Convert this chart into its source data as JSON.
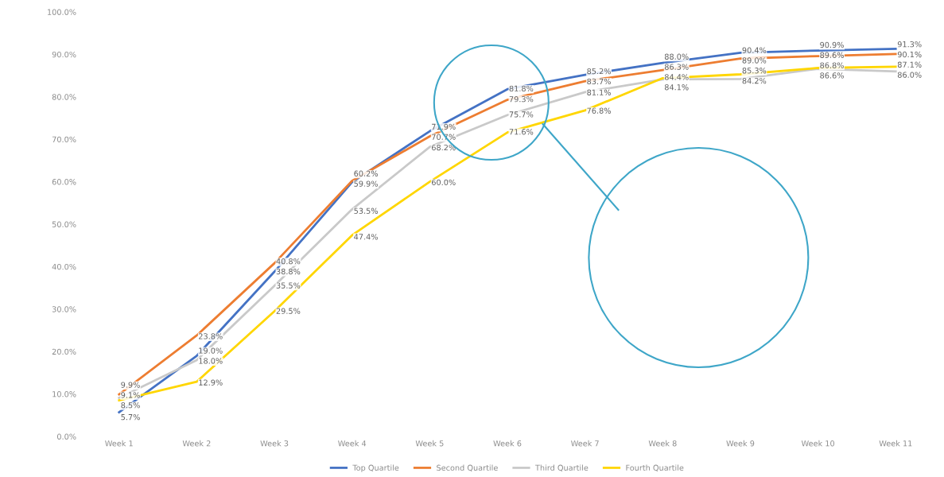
{
  "chart_data": {
    "type": "line",
    "categories": [
      "Week 1",
      "Week 2",
      "Week 3",
      "Week 4",
      "Week 5",
      "Week 6",
      "Week 7",
      "Week 8",
      "Week 9",
      "Week 10",
      "Week 11"
    ],
    "series": [
      {
        "name": "Top Quartile",
        "color": "#4472c4",
        "values": [
          5.7,
          19.0,
          38.8,
          59.9,
          71.9,
          81.8,
          85.2,
          88.0,
          90.4,
          90.9,
          91.3
        ],
        "value_labels": [
          "5.7%",
          "19.0%",
          "38.8%",
          "59.9%",
          "71.9%",
          "81.8%",
          "85.2%",
          "88.0%",
          "90.4%",
          "90.9%",
          "91.3%"
        ]
      },
      {
        "name": "Second Quartile",
        "color": "#ed7d31",
        "values": [
          9.9,
          23.8,
          40.8,
          60.2,
          70.7,
          79.3,
          83.7,
          86.3,
          89.0,
          89.6,
          90.1
        ],
        "value_labels": [
          "9.9%",
          "23.8%",
          "40.8%",
          "60.2%",
          "70.7%",
          "79.3%",
          "83.7%",
          "86.3%",
          "89.0%",
          "89.6%",
          "90.1%"
        ]
      },
      {
        "name": "Third Quartile",
        "color": "#c9c9c9",
        "values": [
          9.1,
          18.0,
          35.5,
          53.5,
          68.2,
          75.7,
          81.1,
          84.1,
          84.2,
          86.6,
          86.0
        ],
        "value_labels": [
          "9.1%",
          "18.0%",
          "35.5%",
          "53.5%",
          "68.2%",
          "75.7%",
          "81.1%",
          "84.1%",
          "84.2%",
          "86.6%",
          "86.0%"
        ]
      },
      {
        "name": "Fourth Quartile",
        "color": "#ffd600",
        "values": [
          8.5,
          12.9,
          29.5,
          47.4,
          60.0,
          71.6,
          76.8,
          84.4,
          85.3,
          86.8,
          87.1
        ],
        "value_labels": [
          "8.5%",
          "12.9%",
          "29.5%",
          "47.4%",
          "60.0%",
          "71.6%",
          "76.8%",
          "84.4%",
          "85.3%",
          "86.8%",
          "87.1%"
        ]
      }
    ],
    "ylim": [
      0,
      100
    ],
    "yticks": [
      {
        "value": 0,
        "label": "0.0%"
      },
      {
        "value": 10,
        "label": "10.0%"
      },
      {
        "value": 20,
        "label": "20.0%"
      },
      {
        "value": 30,
        "label": "30.0%"
      },
      {
        "value": 40,
        "label": "40.0%"
      },
      {
        "value": 50,
        "label": "50.0%"
      },
      {
        "value": 60,
        "label": "60.0%"
      },
      {
        "value": 70,
        "label": "70.0%"
      },
      {
        "value": 80,
        "label": "80.0%"
      },
      {
        "value": 90,
        "label": "90.0%"
      },
      {
        "value": 100,
        "label": "100.0%"
      }
    ],
    "legend": "bottom",
    "grid": false,
    "marker": "none",
    "line_style": "solid"
  }
}
